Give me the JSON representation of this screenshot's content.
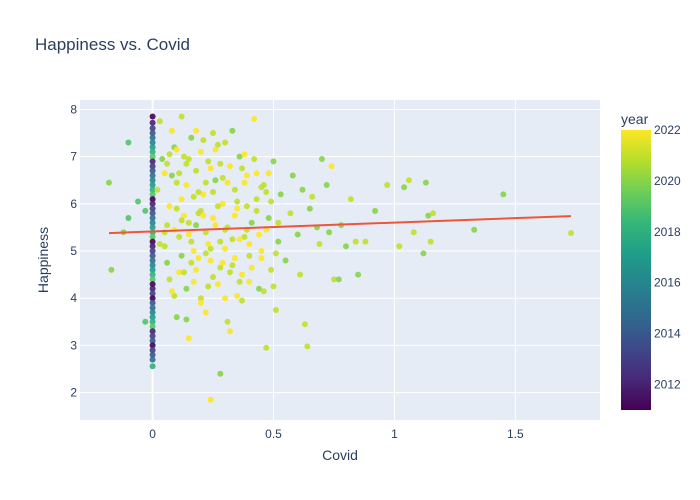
{
  "chart_data": {
    "type": "scatter",
    "title": "Happiness vs. Covid",
    "xlabel": "Covid",
    "ylabel": "Happiness",
    "xlim": [
      -0.3,
      1.85
    ],
    "ylim": [
      1.42,
      8.2
    ],
    "x_ticks": [
      0,
      0.5,
      1,
      1.5
    ],
    "x_tick_labels": [
      "0",
      "0.5",
      "1",
      "1.5"
    ],
    "y_ticks": [
      2,
      3,
      4,
      5,
      6,
      7,
      8
    ],
    "y_tick_labels": [
      "2",
      "3",
      "4",
      "5",
      "6",
      "7",
      "8"
    ],
    "grid": true,
    "colorscale": "viridis",
    "colors": {
      "plot_bg": "#e5ecf6",
      "grid": "#ffffff",
      "trendline": "#ef553b",
      "text": "#2a3f5f"
    },
    "colorbar": {
      "title": "year",
      "range": [
        2011,
        2022
      ],
      "ticks": [
        2012,
        2014,
        2016,
        2018,
        2020,
        2022
      ],
      "tick_labels": [
        "2012",
        "2014",
        "2016",
        "2018",
        "2020",
        "2022"
      ]
    },
    "trendline": {
      "x": [
        -0.18,
        1.73
      ],
      "y": [
        5.38,
        5.74
      ]
    },
    "points": [
      [
        0,
        7.85,
        2011
      ],
      [
        0,
        7.72,
        2012
      ],
      [
        0,
        7.6,
        2013
      ],
      [
        0,
        7.5,
        2014
      ],
      [
        0,
        7.4,
        2015
      ],
      [
        0,
        7.3,
        2016
      ],
      [
        0,
        7.2,
        2017
      ],
      [
        0,
        7.1,
        2018
      ],
      [
        0,
        7.0,
        2019
      ],
      [
        0,
        6.9,
        2012
      ],
      [
        0,
        6.8,
        2013
      ],
      [
        0,
        6.7,
        2014
      ],
      [
        0,
        6.6,
        2015
      ],
      [
        0,
        6.5,
        2016
      ],
      [
        0,
        6.4,
        2017
      ],
      [
        0,
        6.3,
        2018
      ],
      [
        0,
        6.2,
        2019
      ],
      [
        0,
        6.1,
        2011
      ],
      [
        0,
        6.0,
        2012
      ],
      [
        0,
        5.9,
        2013
      ],
      [
        0,
        5.8,
        2014
      ],
      [
        0,
        5.7,
        2015
      ],
      [
        0,
        5.6,
        2016
      ],
      [
        0,
        5.5,
        2017
      ],
      [
        0,
        5.4,
        2018
      ],
      [
        0,
        5.3,
        2019
      ],
      [
        0,
        5.2,
        2011
      ],
      [
        0,
        5.1,
        2012
      ],
      [
        0,
        5.0,
        2013
      ],
      [
        0,
        4.9,
        2014
      ],
      [
        0,
        4.8,
        2015
      ],
      [
        0,
        4.7,
        2016
      ],
      [
        0,
        4.6,
        2017
      ],
      [
        0,
        4.5,
        2018
      ],
      [
        0,
        4.4,
        2019
      ],
      [
        0,
        4.3,
        2011
      ],
      [
        0,
        4.2,
        2012
      ],
      [
        0,
        4.1,
        2013
      ],
      [
        0,
        4.0,
        2011
      ],
      [
        0,
        3.9,
        2014
      ],
      [
        0,
        3.8,
        2015
      ],
      [
        0,
        3.7,
        2016
      ],
      [
        0,
        3.6,
        2017
      ],
      [
        0,
        3.5,
        2018
      ],
      [
        0,
        3.4,
        2019
      ],
      [
        0,
        3.3,
        2012
      ],
      [
        0,
        3.2,
        2013
      ],
      [
        0,
        3.1,
        2014
      ],
      [
        0,
        3.0,
        2011
      ],
      [
        0,
        2.9,
        2013
      ],
      [
        0,
        2.8,
        2014
      ],
      [
        0,
        2.7,
        2015
      ],
      [
        0,
        2.56,
        2018
      ],
      [
        -0.18,
        6.45,
        2020
      ],
      [
        -0.17,
        4.6,
        2020
      ],
      [
        -0.12,
        5.4,
        2020
      ],
      [
        -0.1,
        5.7,
        2019
      ],
      [
        -0.1,
        7.3,
        2019
      ],
      [
        -0.06,
        6.05,
        2019
      ],
      [
        -0.03,
        5.85,
        2019
      ],
      [
        -0.03,
        3.5,
        2019
      ],
      [
        0.02,
        6.3,
        2021
      ],
      [
        0.03,
        7.75,
        2021
      ],
      [
        0.05,
        5.1,
        2021
      ],
      [
        0.06,
        6.85,
        2021
      ],
      [
        0.07,
        4.4,
        2021
      ],
      [
        0.08,
        6.6,
        2020
      ],
      [
        0.09,
        7.2,
        2020
      ],
      [
        0.1,
        5.9,
        2021
      ],
      [
        0.1,
        3.6,
        2020
      ],
      [
        0.11,
        5.3,
        2021
      ],
      [
        0.12,
        6.1,
        2022
      ],
      [
        0.12,
        4.9,
        2020
      ],
      [
        0.13,
        7.0,
        2021
      ],
      [
        0.14,
        4.2,
        2020
      ],
      [
        0.14,
        6.4,
        2022
      ],
      [
        0.15,
        5.6,
        2021
      ],
      [
        0.15,
        3.15,
        2022
      ],
      [
        0.16,
        7.4,
        2020
      ],
      [
        0.17,
        5.0,
        2022
      ],
      [
        0.18,
        6.7,
        2021
      ],
      [
        0.18,
        4.6,
        2022
      ],
      [
        0.19,
        5.8,
        2021
      ],
      [
        0.2,
        7.1,
        2022
      ],
      [
        0.2,
        4.0,
        2021
      ],
      [
        0.21,
        6.2,
        2022
      ],
      [
        0.22,
        5.4,
        2021
      ],
      [
        0.22,
        3.7,
        2022
      ],
      [
        0.23,
        6.9,
        2021
      ],
      [
        0.24,
        4.8,
        2022
      ],
      [
        0.24,
        1.85,
        2022
      ],
      [
        0.25,
        7.5,
        2021
      ],
      [
        0.25,
        5.7,
        2022
      ],
      [
        0.26,
        6.5,
        2020
      ],
      [
        0.27,
        4.3,
        2022
      ],
      [
        0.28,
        5.2,
        2021
      ],
      [
        0.28,
        2.4,
        2020
      ],
      [
        0.29,
        6.0,
        2022
      ],
      [
        0.3,
        7.3,
        2021
      ],
      [
        0.3,
        4.0,
        2022
      ],
      [
        0.31,
        5.5,
        2021
      ],
      [
        0.32,
        6.8,
        2022
      ],
      [
        0.32,
        3.3,
        2022
      ],
      [
        0.33,
        4.7,
        2021
      ],
      [
        0.34,
        6.3,
        2021
      ],
      [
        0.35,
        5.9,
        2022
      ],
      [
        0.36,
        7.0,
        2020
      ],
      [
        0.37,
        4.5,
        2022
      ],
      [
        0.38,
        5.3,
        2021
      ],
      [
        0.39,
        6.6,
        2022
      ],
      [
        0.4,
        4.9,
        2021
      ],
      [
        0.41,
        5.6,
        2020
      ],
      [
        0.42,
        7.8,
        2022
      ],
      [
        0.43,
        6.1,
        2021
      ],
      [
        0.44,
        4.2,
        2020
      ],
      [
        0.45,
        5.0,
        2022
      ],
      [
        0.46,
        6.4,
        2021
      ],
      [
        0.47,
        2.95,
        2021
      ],
      [
        0.48,
        5.7,
        2020
      ],
      [
        0.49,
        4.6,
        2021
      ],
      [
        0.5,
        6.9,
        2020
      ],
      [
        0.51,
        3.75,
        2021
      ],
      [
        0.52,
        5.2,
        2020
      ],
      [
        0.53,
        6.2,
        2020
      ],
      [
        0.55,
        4.8,
        2020
      ],
      [
        0.57,
        5.8,
        2021
      ],
      [
        0.58,
        6.6,
        2020
      ],
      [
        0.6,
        5.35,
        2020
      ],
      [
        0.61,
        4.5,
        2021
      ],
      [
        0.62,
        6.3,
        2020
      ],
      [
        0.63,
        3.45,
        2021
      ],
      [
        0.64,
        2.98,
        2021
      ],
      [
        0.65,
        5.9,
        2020
      ],
      [
        0.66,
        6.15,
        2021
      ],
      [
        0.68,
        5.5,
        2020
      ],
      [
        0.69,
        5.15,
        2021
      ],
      [
        0.7,
        6.95,
        2020
      ],
      [
        0.72,
        6.4,
        2020
      ],
      [
        0.73,
        5.4,
        2020
      ],
      [
        0.74,
        6.8,
        2022
      ],
      [
        0.75,
        4.4,
        2021
      ],
      [
        0.77,
        4.4,
        2020
      ],
      [
        0.78,
        5.55,
        2020
      ],
      [
        0.8,
        5.1,
        2020
      ],
      [
        0.82,
        6.1,
        2021
      ],
      [
        0.84,
        5.2,
        2021
      ],
      [
        0.85,
        4.5,
        2020
      ],
      [
        0.88,
        5.2,
        2021
      ],
      [
        0.92,
        5.85,
        2020
      ],
      [
        0.97,
        6.4,
        2021
      ],
      [
        1.02,
        5.1,
        2021
      ],
      [
        1.04,
        6.35,
        2020
      ],
      [
        1.06,
        6.5,
        2021
      ],
      [
        1.08,
        5.4,
        2021
      ],
      [
        1.12,
        4.95,
        2020
      ],
      [
        1.13,
        6.45,
        2020
      ],
      [
        1.14,
        5.75,
        2020
      ],
      [
        1.15,
        5.2,
        2021
      ],
      [
        1.16,
        5.8,
        2021
      ],
      [
        1.33,
        5.45,
        2020
      ],
      [
        1.45,
        6.2,
        2020
      ],
      [
        1.73,
        5.38,
        2021
      ],
      [
        0.05,
        5.4,
        2021
      ],
      [
        0.06,
        4.75,
        2020
      ],
      [
        0.07,
        5.95,
        2022
      ],
      [
        0.08,
        7.55,
        2022
      ],
      [
        0.09,
        4.05,
        2021
      ],
      [
        0.1,
        6.45,
        2021
      ],
      [
        0.11,
        4.55,
        2022
      ],
      [
        0.12,
        7.85,
        2021
      ],
      [
        0.13,
        5.75,
        2022
      ],
      [
        0.14,
        3.55,
        2020
      ],
      [
        0.15,
        6.95,
        2021
      ],
      [
        0.16,
        5.2,
        2021
      ],
      [
        0.17,
        4.35,
        2022
      ],
      [
        0.18,
        5.55,
        2020
      ],
      [
        0.19,
        6.25,
        2021
      ],
      [
        0.2,
        3.9,
        2022
      ],
      [
        0.21,
        7.35,
        2021
      ],
      [
        0.22,
        4.95,
        2021
      ],
      [
        0.23,
        5.15,
        2022
      ],
      [
        0.24,
        6.75,
        2022
      ],
      [
        0.25,
        4.45,
        2021
      ],
      [
        0.26,
        7.15,
        2022
      ],
      [
        0.27,
        5.95,
        2021
      ],
      [
        0.28,
        4.65,
        2021
      ],
      [
        0.29,
        6.55,
        2021
      ],
      [
        0.3,
        5.05,
        2022
      ],
      [
        0.31,
        3.5,
        2021
      ],
      [
        0.33,
        7.55,
        2020
      ],
      [
        0.34,
        4.85,
        2022
      ],
      [
        0.35,
        6.05,
        2021
      ],
      [
        0.36,
        5.25,
        2022
      ],
      [
        0.37,
        3.95,
        2021
      ],
      [
        0.38,
        6.45,
        2022
      ],
      [
        0.39,
        5.45,
        2021
      ],
      [
        0.4,
        4.35,
        2022
      ],
      [
        0.42,
        6.95,
        2021
      ],
      [
        0.44,
        5.35,
        2022
      ],
      [
        0.46,
        4.15,
        2021
      ],
      [
        0.48,
        6.65,
        2022
      ],
      [
        0.5,
        4.25,
        2021
      ],
      [
        0.04,
        6.95,
        2020
      ],
      [
        0.06,
        5.55,
        2021
      ],
      [
        0.08,
        4.15,
        2022
      ],
      [
        0.1,
        7.15,
        2022
      ],
      [
        0.12,
        5.65,
        2021
      ],
      [
        0.14,
        6.85,
        2021
      ],
      [
        0.16,
        4.75,
        2021
      ],
      [
        0.18,
        7.55,
        2022
      ],
      [
        0.2,
        5.85,
        2021
      ],
      [
        0.22,
        6.45,
        2021
      ],
      [
        0.24,
        5.05,
        2021
      ],
      [
        0.26,
        5.55,
        2022
      ],
      [
        0.28,
        6.85,
        2021
      ],
      [
        0.3,
        5.45,
        2021
      ],
      [
        0.32,
        4.55,
        2021
      ],
      [
        0.34,
        5.75,
        2022
      ],
      [
        0.36,
        4.35,
        2021
      ],
      [
        0.38,
        7.05,
        2022
      ],
      [
        0.4,
        5.15,
        2022
      ],
      [
        0.43,
        5.85,
        2021
      ],
      [
        0.45,
        6.35,
        2021
      ],
      [
        0.47,
        5.45,
        2022
      ],
      [
        0.49,
        6.05,
        2021
      ],
      [
        0.52,
        5.6,
        2021
      ],
      [
        0.03,
        5.15,
        2021
      ],
      [
        0.05,
        6.65,
        2022
      ],
      [
        0.07,
        7.05,
        2021
      ],
      [
        0.09,
        5.45,
        2022
      ],
      [
        0.11,
        6.65,
        2021
      ],
      [
        0.13,
        4.55,
        2021
      ],
      [
        0.15,
        5.35,
        2022
      ],
      [
        0.17,
        6.15,
        2021
      ],
      [
        0.19,
        4.85,
        2022
      ],
      [
        0.21,
        5.75,
        2022
      ],
      [
        0.23,
        4.25,
        2021
      ],
      [
        0.25,
        6.25,
        2021
      ],
      [
        0.27,
        7.25,
        2021
      ],
      [
        0.29,
        4.75,
        2022
      ],
      [
        0.31,
        6.45,
        2022
      ],
      [
        0.33,
        5.25,
        2021
      ],
      [
        0.35,
        4.05,
        2022
      ],
      [
        0.37,
        6.75,
        2021
      ],
      [
        0.39,
        5.95,
        2021
      ],
      [
        0.41,
        4.65,
        2022
      ],
      [
        0.43,
        6.65,
        2022
      ],
      [
        0.45,
        4.85,
        2022
      ],
      [
        0.47,
        6.25,
        2021
      ],
      [
        0.51,
        4.95,
        2021
      ]
    ]
  }
}
